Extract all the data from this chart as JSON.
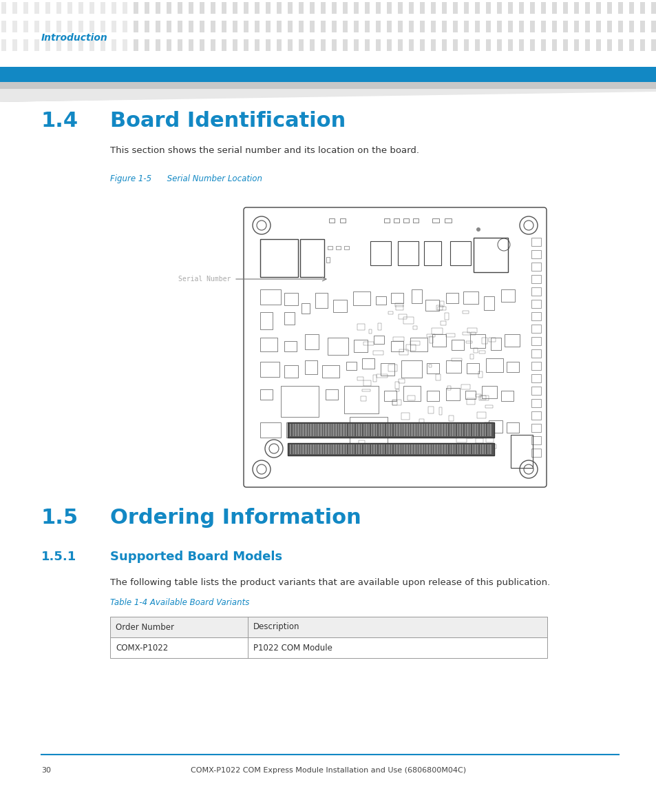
{
  "page_bg": "#ffffff",
  "header_strip_color": "#1288c4",
  "header_text": "Introduction",
  "header_text_color": "#1288c4",
  "header_text_size": 10,
  "section_14_number": "1.4",
  "section_14_title": "Board Identification",
  "section_14_color": "#1288c4",
  "section_14_size": 22,
  "body_text_1": "This section shows the serial number and its location on the board.",
  "body_text_1_color": "#333333",
  "body_text_1_size": 9.5,
  "figure_label": "Figure 1-5      Serial Number Location",
  "figure_label_color": "#1288c4",
  "figure_label_size": 8.5,
  "serial_number_label": "Serial Number",
  "serial_number_label_color": "#aaaaaa",
  "serial_number_label_size": 7,
  "section_15_number": "1.5",
  "section_15_title": "Ordering Information",
  "section_15_color": "#1288c4",
  "section_15_size": 22,
  "section_151_number": "1.5.1",
  "section_151_title": "Supported Board Models",
  "section_151_color": "#1288c4",
  "section_151_size": 13,
  "body_text_2": "The following table lists the product variants that are available upon release of this publication.",
  "body_text_2_color": "#333333",
  "body_text_2_size": 9.5,
  "table_title": "Table 1-4 Available Board Variants",
  "table_title_color": "#1288c4",
  "table_title_size": 8.5,
  "table_header": [
    "Order Number",
    "Description"
  ],
  "table_row": [
    "COMX-P1022",
    "P1022 COM Module"
  ],
  "table_header_bg": "#eeeeee",
  "table_border_color": "#999999",
  "footer_line_color": "#1288c4",
  "footer_page": "30",
  "footer_text": "COMX-P1022 COM Express Module Installation and Use (6806800M04C)",
  "footer_text_color": "#444444",
  "footer_size": 8
}
